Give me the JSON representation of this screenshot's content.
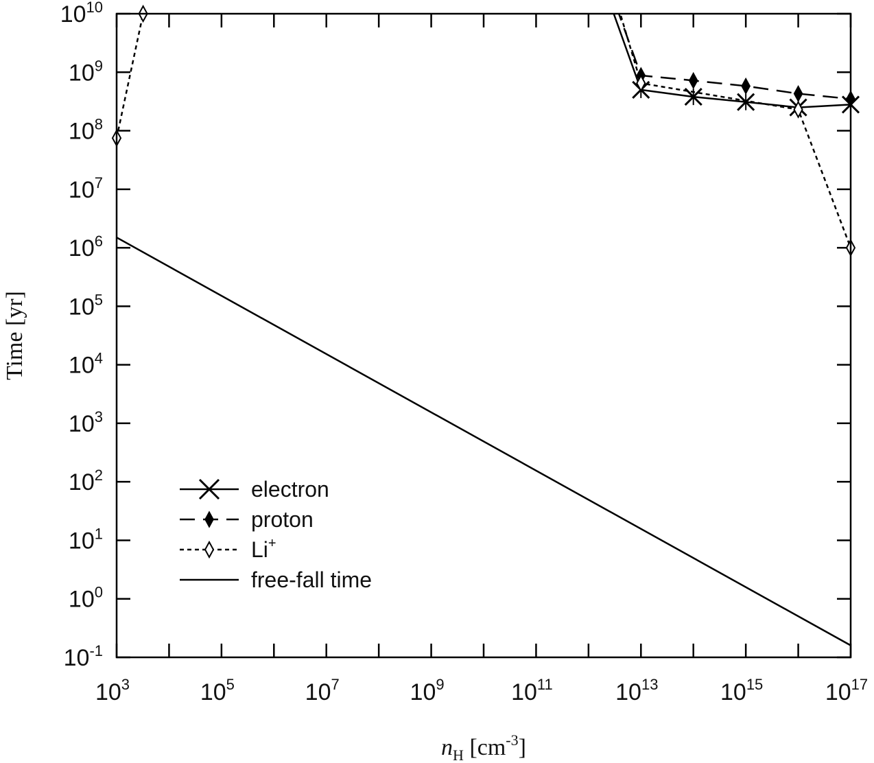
{
  "chart_data": {
    "type": "line",
    "xlabel": "n_H [cm^-3]",
    "xlabel_parts": {
      "var": "n",
      "sub": "H",
      "unit_open": " [cm",
      "unit_exp": "-3",
      "unit_close": "]"
    },
    "ylabel": "Time [yr]",
    "x_scale": "log",
    "y_scale": "log",
    "xlim": [
      1000.0,
      1e+17
    ],
    "ylim": [
      0.1,
      10000000000.0
    ],
    "x_ticks": [
      {
        "base": "10",
        "exp": "3"
      },
      {
        "base": "10",
        "exp": "5"
      },
      {
        "base": "10",
        "exp": "7"
      },
      {
        "base": "10",
        "exp": "9"
      },
      {
        "base": "10",
        "exp": "11"
      },
      {
        "base": "10",
        "exp": "13"
      },
      {
        "base": "10",
        "exp": "15"
      },
      {
        "base": "10",
        "exp": "17"
      }
    ],
    "y_ticks": [
      {
        "base": "10",
        "exp": "-1"
      },
      {
        "base": "10",
        "exp": "0"
      },
      {
        "base": "10",
        "exp": "1"
      },
      {
        "base": "10",
        "exp": "2"
      },
      {
        "base": "10",
        "exp": "3"
      },
      {
        "base": "10",
        "exp": "4"
      },
      {
        "base": "10",
        "exp": "5"
      },
      {
        "base": "10",
        "exp": "6"
      },
      {
        "base": "10",
        "exp": "7"
      },
      {
        "base": "10",
        "exp": "8"
      },
      {
        "base": "10",
        "exp": "9"
      },
      {
        "base": "10",
        "exp": "10"
      }
    ],
    "grid": false,
    "legend_position": "lower-left",
    "series": [
      {
        "name": "electron",
        "marker": "x",
        "line": "solid",
        "x": [
          1000000000000.0,
          10000000000000.0,
          100000000000000.0,
          1000000000000000.0,
          1e+16,
          1e+17
        ],
        "y": [
          160000000000.0,
          500000000.0,
          380000000.0,
          310000000.0,
          250000000.0,
          280000000.0
        ]
      },
      {
        "name": "proton",
        "marker": "filled-diamond",
        "line": "dashed",
        "x": [
          1200000000000.0,
          10000000000000.0,
          100000000000000.0,
          1000000000000000.0,
          1e+16,
          1e+17
        ],
        "y": [
          180000000000.0,
          880000000.0,
          720000000.0,
          580000000.0,
          430000000.0,
          350000000.0
        ]
      },
      {
        "name": "Li",
        "name_sup": "+",
        "marker": "open-diamond",
        "line": "dotted",
        "x": [
          1000.0,
          3200.0,
          1300000000000.0,
          10000000000000.0,
          1e+16,
          1e+17
        ],
        "y": [
          75000000.0,
          10000000000.0,
          300000000000.0,
          650000000.0,
          230000000.0,
          1000000.0
        ]
      },
      {
        "name": "free-fall time",
        "marker": "none",
        "line": "solid",
        "x": [
          1000.0,
          1e+17
        ],
        "y": [
          1500000.0,
          0.16
        ]
      }
    ]
  }
}
